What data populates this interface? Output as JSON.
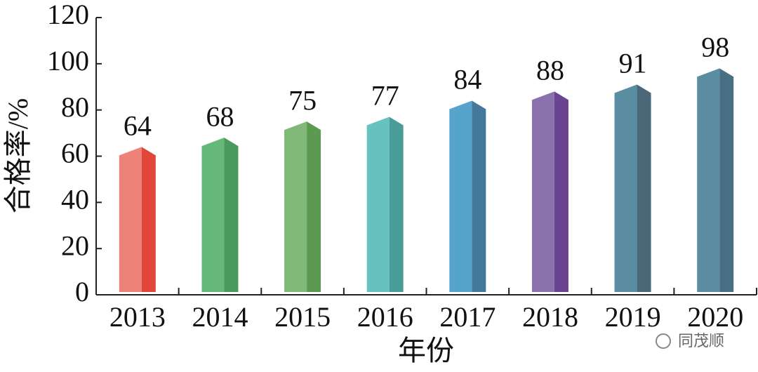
{
  "chart_data": {
    "type": "bar",
    "y_label": "合格率/%",
    "x_label": "年份",
    "categories": [
      "2013",
      "2014",
      "2015",
      "2016",
      "2017",
      "2018",
      "2019",
      "2020"
    ],
    "values": [
      64,
      68,
      75,
      77,
      84,
      88,
      91,
      98
    ],
    "colors": [
      "#ee8278",
      "#66b878",
      "#80b878",
      "#66c2be",
      "#56a4cc",
      "#8a72ac",
      "#5a8ca2",
      "#5a8ca2"
    ],
    "side_colors": [
      "#e0463a",
      "#4a9a5e",
      "#5c9a52",
      "#4a9c98",
      "#44789a",
      "#6a4490",
      "#4a6878",
      "#4a6e84"
    ],
    "ylim": [
      0,
      120
    ],
    "yticks": [
      0,
      20,
      40,
      60,
      80,
      100,
      120
    ],
    "watermark": "同茂顺"
  }
}
